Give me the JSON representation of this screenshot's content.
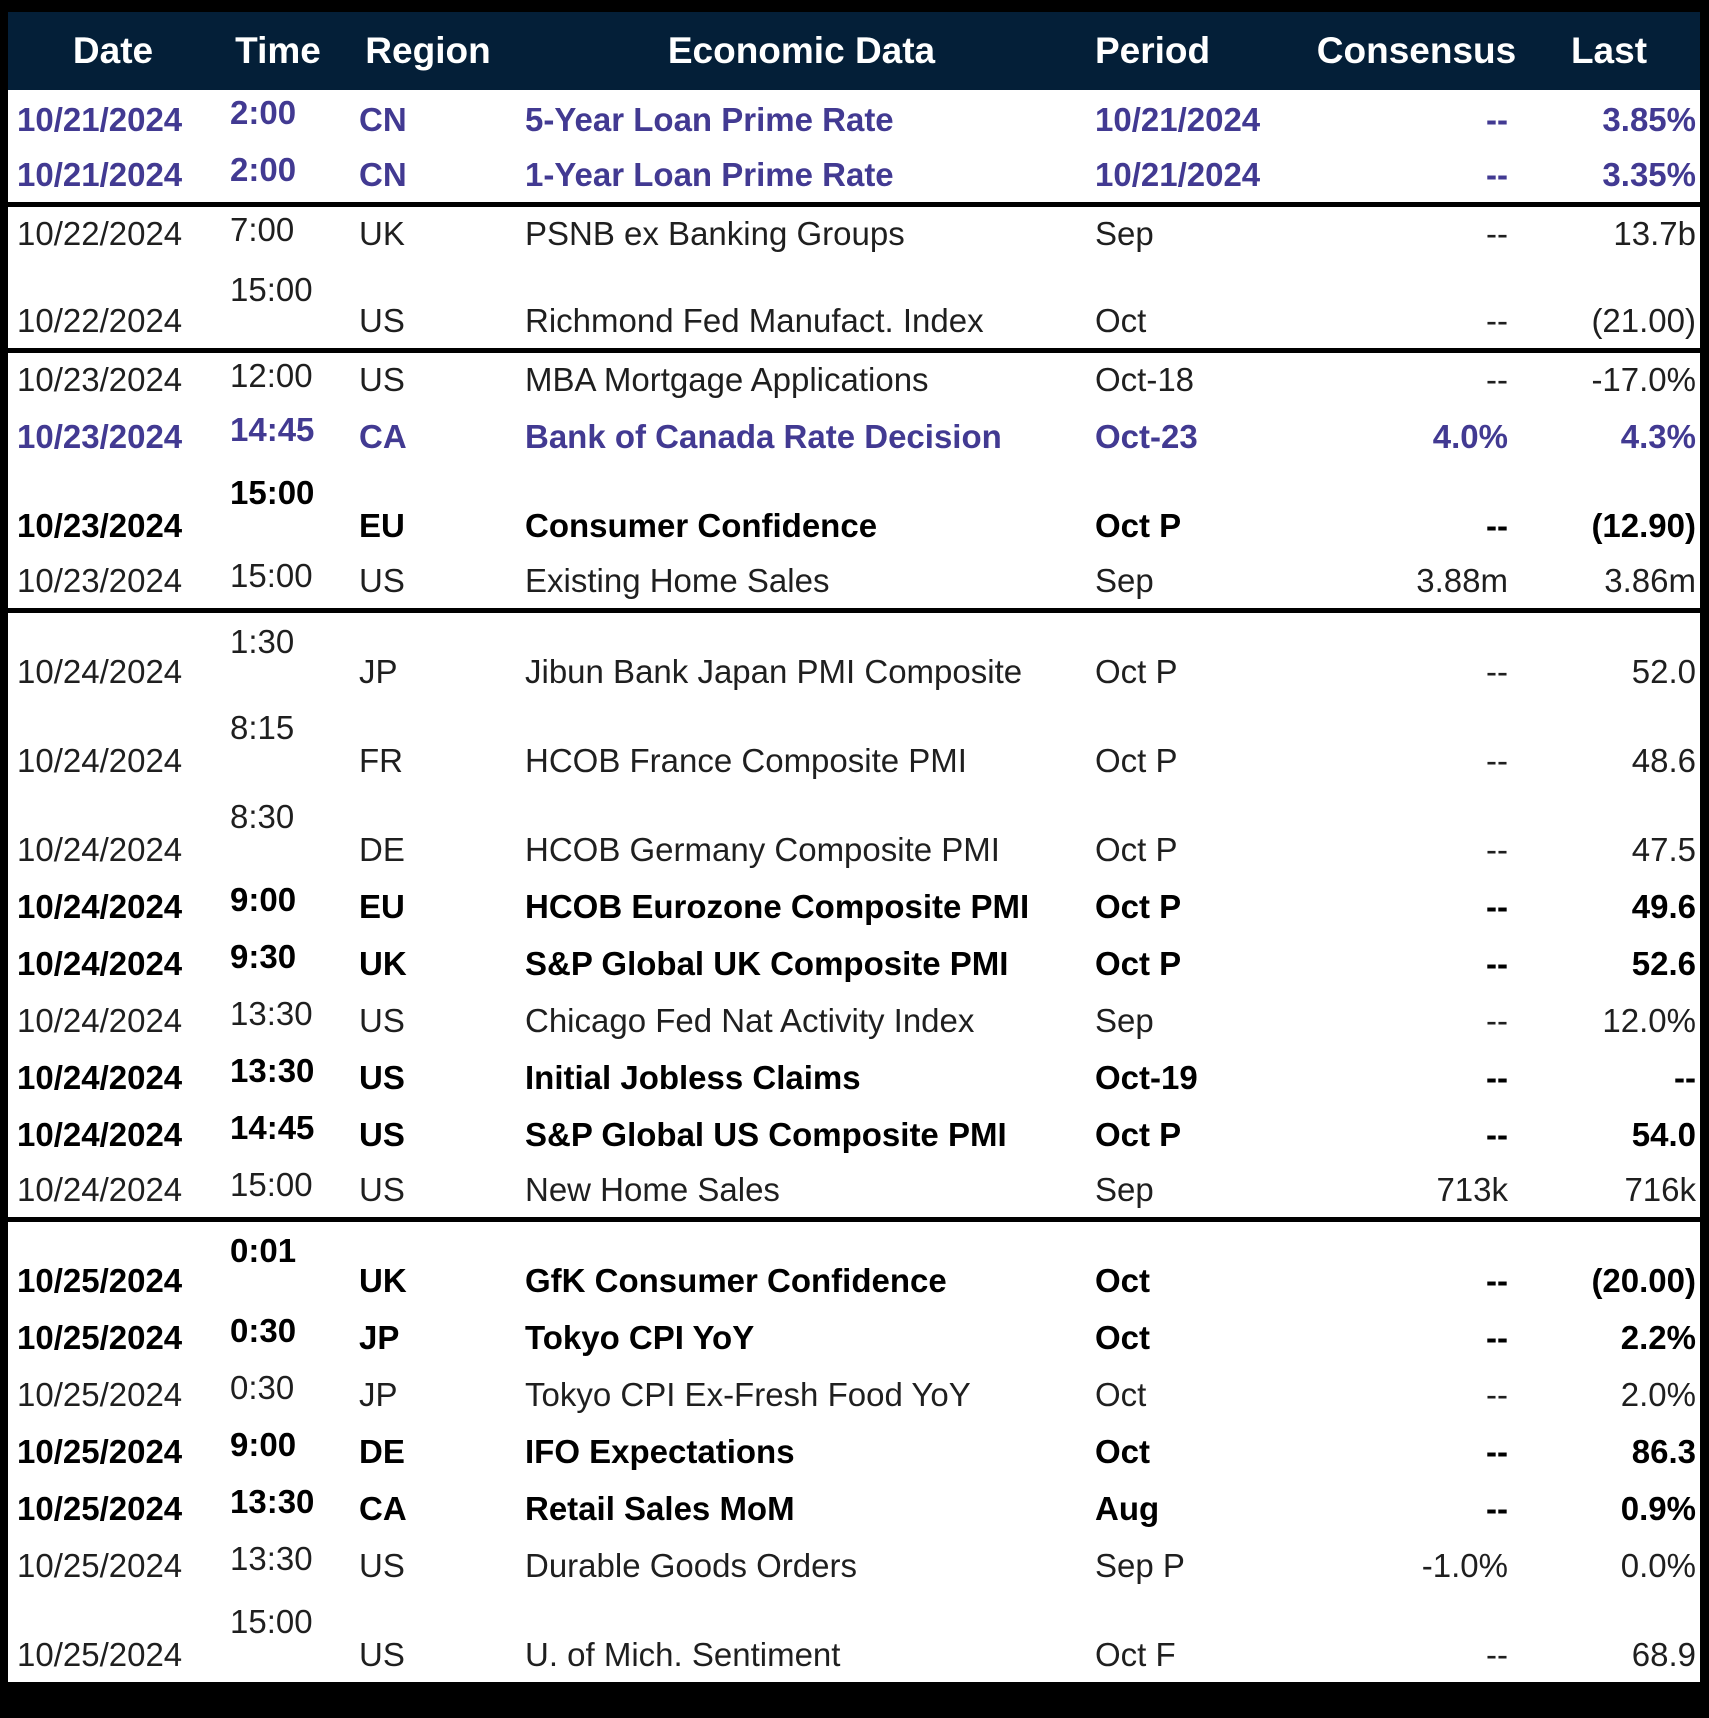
{
  "colors": {
    "header_bg": "#041f38",
    "header_text": "#ffffff",
    "accent_purple": "#423a92",
    "body_text": "#1f1f1f",
    "bold_text": "#000000",
    "border": "#000000",
    "row_bg": "#ffffff"
  },
  "table": {
    "columns": [
      {
        "key": "date",
        "label": "Date"
      },
      {
        "key": "time",
        "label": "Time"
      },
      {
        "key": "region",
        "label": "Region"
      },
      {
        "key": "event",
        "label": "Economic Data"
      },
      {
        "key": "period",
        "label": "Period"
      },
      {
        "key": "consensus",
        "label": "Consensus"
      },
      {
        "key": "last",
        "label": "Last"
      }
    ],
    "rows": [
      {
        "date": "10/21/2024",
        "time": "2:00",
        "region": "CN",
        "event": "5-Year Loan Prime Rate",
        "period": "10/21/2024",
        "consensus": "--",
        "last": "3.85%",
        "style": "purple",
        "tall": false,
        "group_end": false
      },
      {
        "date": "10/21/2024",
        "time": "2:00",
        "region": "CN",
        "event": "1-Year Loan Prime Rate",
        "period": "10/21/2024",
        "consensus": "--",
        "last": "3.35%",
        "style": "purple",
        "tall": false,
        "group_end": true
      },
      {
        "date": "10/22/2024",
        "time": "7:00",
        "region": "UK",
        "event": "PSNB ex Banking Groups",
        "period": "Sep",
        "consensus": "--",
        "last": "13.7b",
        "style": "regular",
        "tall": false,
        "group_end": false
      },
      {
        "date": "10/22/2024",
        "time": "15:00",
        "region": "US",
        "event": "Richmond Fed Manufact. Index",
        "period": "Oct",
        "consensus": "--",
        "last": "(21.00)",
        "style": "regular",
        "tall": true,
        "group_end": true
      },
      {
        "date": "10/23/2024",
        "time": "12:00",
        "region": "US",
        "event": "MBA Mortgage Applications",
        "period": "Oct-18",
        "consensus": "--",
        "last": "-17.0%",
        "style": "regular",
        "tall": false,
        "group_end": false
      },
      {
        "date": "10/23/2024",
        "time": "14:45",
        "region": "CA",
        "event": "Bank of Canada Rate Decision",
        "period": "Oct-23",
        "consensus": "4.0%",
        "last": "4.3%",
        "style": "purple",
        "tall": false,
        "group_end": false
      },
      {
        "date": "10/23/2024",
        "time": "15:00",
        "region": "EU",
        "event": "Consumer Confidence",
        "period": "Oct P",
        "consensus": "--",
        "last": "(12.90)",
        "style": "bold",
        "tall": true,
        "group_end": false
      },
      {
        "date": "10/23/2024",
        "time": "15:00",
        "region": "US",
        "event": "Existing Home Sales",
        "period": "Sep",
        "consensus": "3.88m",
        "last": "3.86m",
        "style": "regular",
        "tall": false,
        "group_end": true
      },
      {
        "date": "10/24/2024",
        "time": "1:30",
        "region": "JP",
        "event": "Jibun Bank Japan PMI Composite",
        "period": "Oct P",
        "consensus": "--",
        "last": "52.0",
        "style": "regular",
        "tall": true,
        "group_end": false
      },
      {
        "date": "10/24/2024",
        "time": "8:15",
        "region": "FR",
        "event": "HCOB France Composite PMI",
        "period": "Oct P",
        "consensus": "--",
        "last": "48.6",
        "style": "regular",
        "tall": true,
        "group_end": false
      },
      {
        "date": "10/24/2024",
        "time": "8:30",
        "region": "DE",
        "event": "HCOB Germany Composite PMI",
        "period": "Oct P",
        "consensus": "--",
        "last": "47.5",
        "style": "regular",
        "tall": true,
        "group_end": false
      },
      {
        "date": "10/24/2024",
        "time": "9:00",
        "region": "EU",
        "event": "HCOB Eurozone Composite PMI",
        "period": "Oct P",
        "consensus": "--",
        "last": "49.6",
        "style": "bold",
        "tall": false,
        "group_end": false
      },
      {
        "date": "10/24/2024",
        "time": "9:30",
        "region": "UK",
        "event": "S&P Global UK Composite PMI",
        "period": "Oct P",
        "consensus": "--",
        "last": "52.6",
        "style": "bold",
        "tall": false,
        "group_end": false
      },
      {
        "date": "10/24/2024",
        "time": "13:30",
        "region": "US",
        "event": "Chicago Fed Nat Activity Index",
        "period": "Sep",
        "consensus": "--",
        "last": "12.0%",
        "style": "regular",
        "tall": false,
        "group_end": false
      },
      {
        "date": "10/24/2024",
        "time": "13:30",
        "region": "US",
        "event": "Initial Jobless Claims",
        "period": "Oct-19",
        "consensus": "--",
        "last": "--",
        "style": "bold",
        "tall": false,
        "group_end": false
      },
      {
        "date": "10/24/2024",
        "time": "14:45",
        "region": "US",
        "event": "S&P Global US Composite PMI",
        "period": "Oct P",
        "consensus": "--",
        "last": "54.0",
        "style": "bold",
        "tall": false,
        "group_end": false
      },
      {
        "date": "10/24/2024",
        "time": "15:00",
        "region": "US",
        "event": "New Home Sales",
        "period": "Sep",
        "consensus": "713k",
        "last": "716k",
        "style": "regular",
        "tall": false,
        "group_end": true
      },
      {
        "date": "10/25/2024",
        "time": "0:01",
        "region": "UK",
        "event": "GfK Consumer Confidence",
        "period": "Oct",
        "consensus": "--",
        "last": "(20.00)",
        "style": "bold",
        "tall": true,
        "group_end": false
      },
      {
        "date": "10/25/2024",
        "time": "0:30",
        "region": "JP",
        "event": "Tokyo CPI YoY",
        "period": "Oct",
        "consensus": "--",
        "last": "2.2%",
        "style": "bold",
        "tall": false,
        "group_end": false
      },
      {
        "date": "10/25/2024",
        "time": "0:30",
        "region": "JP",
        "event": "Tokyo CPI Ex-Fresh Food YoY",
        "period": "Oct",
        "consensus": "--",
        "last": "2.0%",
        "style": "regular",
        "tall": false,
        "group_end": false
      },
      {
        "date": "10/25/2024",
        "time": "9:00",
        "region": "DE",
        "event": "IFO Expectations",
        "period": "Oct",
        "consensus": "--",
        "last": "86.3",
        "style": "bold",
        "tall": false,
        "group_end": false
      },
      {
        "date": "10/25/2024",
        "time": "13:30",
        "region": "CA",
        "event": "Retail Sales MoM",
        "period": "Aug",
        "consensus": "--",
        "last": "0.9%",
        "style": "bold",
        "tall": false,
        "group_end": false
      },
      {
        "date": "10/25/2024",
        "time": "13:30",
        "region": "US",
        "event": "Durable Goods Orders",
        "period": "Sep P",
        "consensus": "-1.0%",
        "last": "0.0%",
        "style": "regular",
        "tall": false,
        "group_end": false
      },
      {
        "date": "10/25/2024",
        "time": "15:00",
        "region": "US",
        "event": "U. of Mich. Sentiment",
        "period": "Oct F",
        "consensus": "--",
        "last": "68.9",
        "style": "regular",
        "tall": true,
        "group_end": false
      }
    ]
  }
}
